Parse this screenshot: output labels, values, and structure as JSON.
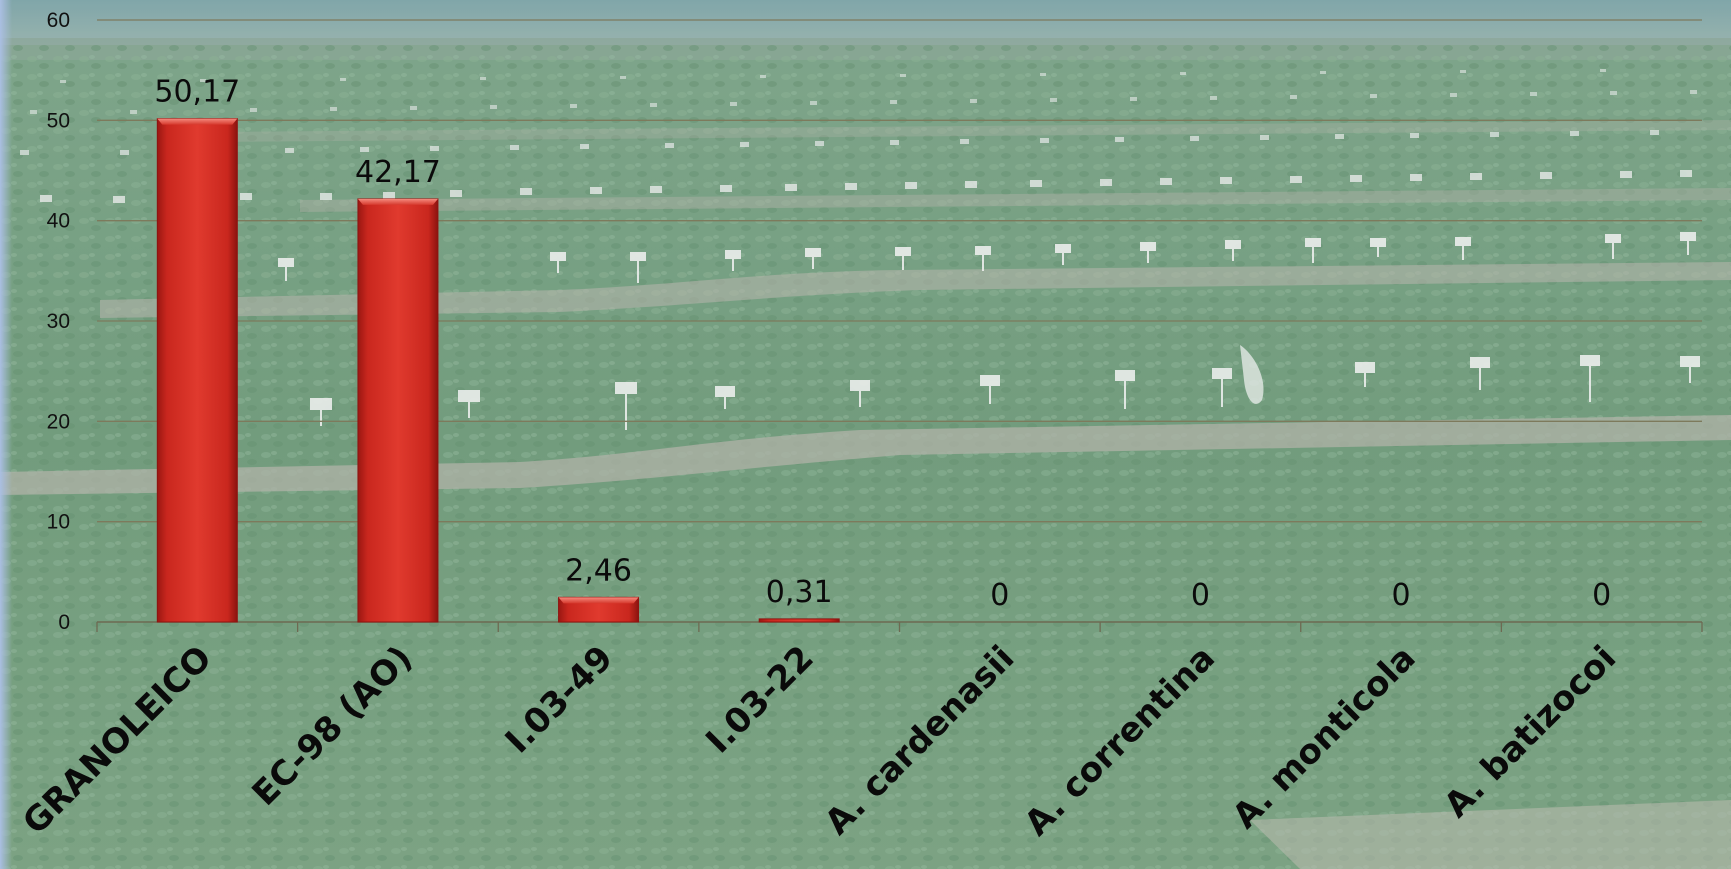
{
  "colors": {
    "bar": "#d22b22",
    "bar_dark": "#8e1410",
    "bar_light": "#f36a5c",
    "gridline": "#7d7a5c",
    "axis": "#6d6a52",
    "sky": "#7ea3a6",
    "field": "#5f8d6a",
    "soil": "#a7a99c"
  },
  "chart_data": {
    "type": "bar",
    "title": "",
    "xlabel": "",
    "ylabel": "",
    "categories": [
      "GRANOLEICO",
      "EC-98 (AO)",
      "I.03-49",
      "I.03-22",
      "A. cardenasii",
      "A. correntina",
      "A. monticola",
      "A. batizocoi"
    ],
    "values": [
      50.17,
      42.17,
      2.46,
      0.31,
      0,
      0,
      0,
      0
    ],
    "value_labels": [
      "50,17",
      "42,17",
      "2,46",
      "0,31",
      "0",
      "0",
      "0",
      "0"
    ],
    "ylim": [
      0,
      60
    ],
    "yticks": [
      0,
      10,
      20,
      30,
      40,
      50,
      60
    ],
    "ytick_labels": [
      "0",
      "10",
      "20",
      "30",
      "40",
      "50",
      "60"
    ],
    "grid": true,
    "legend": "none",
    "background": "photo of peanut field trial plots"
  }
}
